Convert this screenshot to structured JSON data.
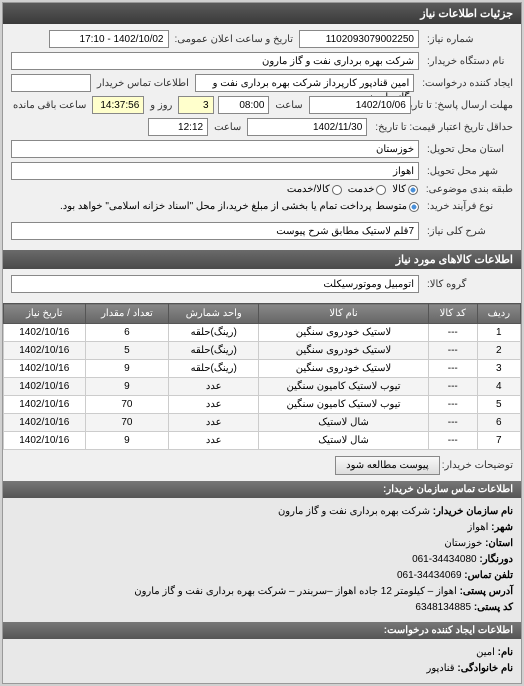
{
  "panel_title": "جزئیات اطلاعات نیاز",
  "form": {
    "req_no_label": "شماره نیاز:",
    "req_no": "1102093079002250",
    "announce_label": "تاریخ و ساعت اعلان عمومی:",
    "announce_val": "1402/10/02 - 17:10",
    "buyer_name_label": "نام دستگاه خریدار:",
    "buyer_name": "شرکت بهره برداری نفت و گاز مارون",
    "requester_label": "ایجاد کننده درخواست:",
    "requester": "امین قنادپور کارپرداز شرکت بهره برداری نفت و گاز مارون",
    "contact_label": "اطلاعات تماس خریدار",
    "contact_val": "",
    "deadline_label": "مهلت ارسال پاسخ: تا تاریخ:",
    "deadline_date": "1402/10/06",
    "time_label": "ساعت",
    "deadline_time": "08:00",
    "days_remain_prefix": "",
    "days_remain": "3",
    "days_label": "روز و",
    "time_remain": "14:37:56",
    "time_remain_label": "ساعت باقی مانده",
    "validity_label": "حداقل تاریخ اعتبار قیمت: تا تاریخ:",
    "validity_date": "1402/11/30",
    "validity_time": "12:12",
    "province_label": "استان محل تحویل:",
    "province": "خوزستان",
    "city_label": "شهر محل تحویل:",
    "city": "اهواز",
    "category_label": "طبقه بندی موضوعی:",
    "cat_goods": "کالا",
    "cat_service": "خدمت",
    "cat_goods_service": "کالا/خدمت",
    "process_label": "نوع فرآیند خرید:",
    "proc_small": "متوسط",
    "proc_note": "پرداخت تمام یا بخشی از مبلغ خرید،از محل \"اسناد خزانه اسلامی\" خواهد بود.",
    "summary_label": "شرح کلی نیاز:",
    "summary": "7قلم لاستیک مطابق شرح پیوست"
  },
  "goods_section_title": "اطلاعات کالاهای مورد نیاز",
  "goods_group_label": "گروه کالا:",
  "goods_group": "اتومبیل وموتورسیکلت",
  "table": {
    "columns": [
      "ردیف",
      "کد کالا",
      "نام کالا",
      "واحد شمارش",
      "تعداد / مقدار",
      "تاریخ نیاز"
    ],
    "rows": [
      [
        "1",
        "---",
        "لاستیک خودروی سنگین",
        "(رینگ)حلقه",
        "6",
        "1402/10/16"
      ],
      [
        "2",
        "---",
        "لاستیک خودروی سنگین",
        "(رینگ)حلقه",
        "5",
        "1402/10/16"
      ],
      [
        "3",
        "---",
        "لاستیک خودروی سنگین",
        "(رینگ)حلقه",
        "9",
        "1402/10/16"
      ],
      [
        "4",
        "---",
        "تیوب لاستیک کامیون سنگین",
        "عدد",
        "9",
        "1402/10/16"
      ],
      [
        "5",
        "---",
        "تیوب لاستیک کامیون سنگین",
        "عدد",
        "70",
        "1402/10/16"
      ],
      [
        "6",
        "---",
        "شال لاستیک",
        "عدد",
        "70",
        "1402/10/16"
      ],
      [
        "7",
        "---",
        "شال لاستیک",
        "عدد",
        "9",
        "1402/10/16"
      ]
    ]
  },
  "btn_attachment": "پیوست مطالعه شود",
  "desc_label": "توضیحات خریدار:",
  "contact_section": "اطلاعات تماس سازمان خریدار:",
  "footer": {
    "org_label": "نام سازمان خریدار:",
    "org": "شرکت بهره برداری نفت و گاز مارون",
    "city_label": "شهر:",
    "city": "اهواز",
    "province_label": "استان:",
    "province": "خوزستان",
    "fax_label": "دورنگار:",
    "fax": "34434080-061",
    "phone_label": "تلفن تماس:",
    "phone": "34434069-061",
    "addr_label": "آدرس پستی:",
    "addr": "اهواز – کیلومتر 12 جاده اهواز –سربندر – شرکت بهره برداری نفت و گاز مارون",
    "post_label": "کد پستی:",
    "post": "6348134885",
    "creator_section": "اطلاعات ایجاد کننده درخواست:",
    "name_label": "نام:",
    "name": "امین",
    "family_label": "نام خانوادگی:",
    "family": "قنادپور"
  }
}
